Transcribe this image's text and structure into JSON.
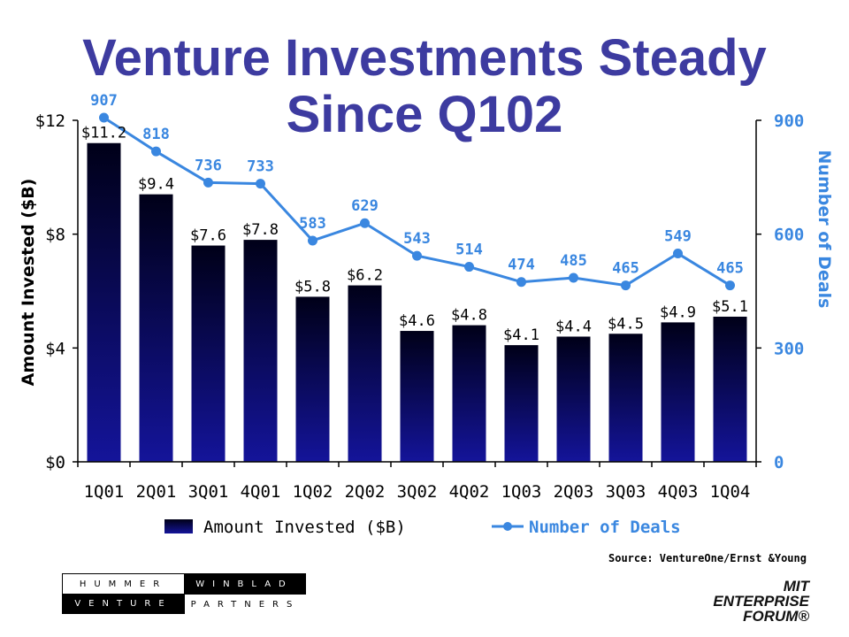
{
  "title_line1": "Venture Investments Steady",
  "title_line2": "Since Q102",
  "colors": {
    "title": "#3d3ba0",
    "bar_top": "#000018",
    "bar_bottom": "#14149a",
    "line": "#3a87e0",
    "axis_right": "#3a87e0"
  },
  "chart_data": {
    "type": "bar",
    "categories": [
      "1Q01",
      "2Q01",
      "3Q01",
      "4Q01",
      "1Q02",
      "2Q02",
      "3Q02",
      "4Q02",
      "1Q03",
      "2Q03",
      "3Q03",
      "4Q03",
      "1Q04"
    ],
    "series": [
      {
        "name": "Amount Invested ($B)",
        "type": "bar",
        "axis": "left",
        "values": [
          11.2,
          9.4,
          7.6,
          7.8,
          5.8,
          6.2,
          4.6,
          4.8,
          4.1,
          4.4,
          4.5,
          4.9,
          5.1
        ],
        "labels": [
          "$11.2",
          "$9.4",
          "$7.6",
          "$7.8",
          "$5.8",
          "$6.2",
          "$4.6",
          "$4.8",
          "$4.1",
          "$4.4",
          "$4.5",
          "$4.9",
          "$5.1"
        ]
      },
      {
        "name": "Number of Deals",
        "type": "line",
        "axis": "right",
        "values": [
          907,
          818,
          736,
          733,
          583,
          629,
          543,
          514,
          474,
          485,
          465,
          549,
          465
        ],
        "labels": [
          "907",
          "818",
          "736",
          "733",
          "583",
          "629",
          "543",
          "514",
          "474",
          "485",
          "465",
          "549",
          "465"
        ]
      }
    ],
    "y_left": {
      "label": "Amount Invested ($B)",
      "ylim": [
        0,
        12
      ],
      "ticks": [
        0,
        4,
        8,
        12
      ],
      "tick_labels": [
        "$0",
        "$4",
        "$8",
        "$12"
      ]
    },
    "y_right": {
      "label": "Number of Deals",
      "ylim": [
        0,
        900
      ],
      "ticks": [
        0,
        300,
        600,
        900
      ],
      "tick_labels": [
        "0",
        "300",
        "600",
        "900"
      ]
    },
    "legend": {
      "placement": "bottom",
      "entries": [
        "Amount Invested ($B)",
        "Number of Deals"
      ]
    },
    "grid": false
  },
  "source": "Source: VentureOne/Ernst &Young",
  "logos": {
    "hummer_winblad": {
      "cells": [
        "HUMMER",
        "WINBLAD",
        "VENTURE",
        "PARTNERS"
      ]
    },
    "mit": {
      "lines": [
        "MIT",
        "ENTERPRISE",
        "FORUM®"
      ]
    }
  }
}
